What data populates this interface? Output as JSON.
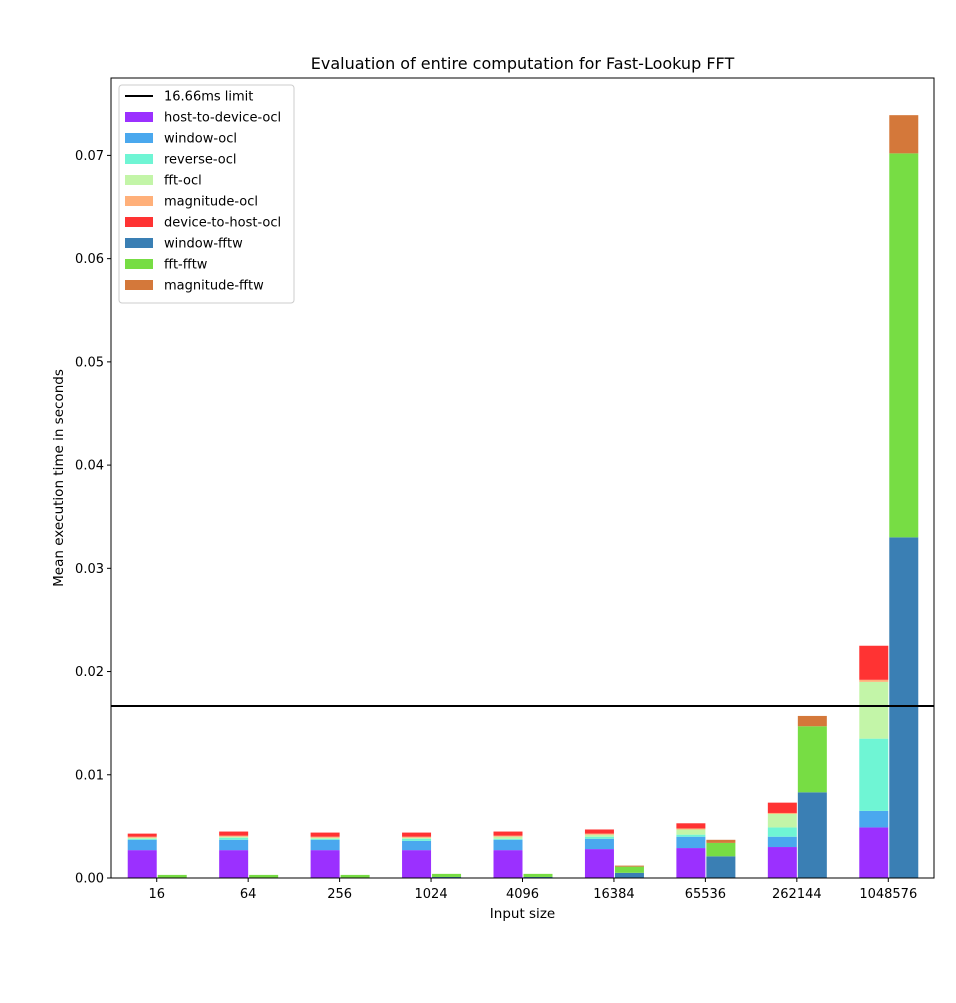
{
  "chart_data": {
    "type": "bar",
    "stacked": true,
    "grouped": true,
    "title": "Evaluation of entire computation for Fast-Lookup FFT",
    "xlabel": "Input size",
    "ylabel": "Mean execution time in seconds",
    "categories": [
      "16",
      "64",
      "256",
      "1024",
      "4096",
      "16384",
      "65536",
      "262144",
      "1048576"
    ],
    "ylim": [
      0,
      0.0775
    ],
    "yticks": [
      0.0,
      0.01,
      0.02,
      0.03,
      0.04,
      0.05,
      0.06,
      0.07
    ],
    "ytick_labels": [
      "0.00",
      "0.01",
      "0.02",
      "0.03",
      "0.04",
      "0.05",
      "0.06",
      "0.07"
    ],
    "grid": false,
    "legend_position": "top-left",
    "reference_line": {
      "name": "16.66ms limit",
      "value": 0.01666,
      "color": "#000000"
    },
    "groups": [
      {
        "name": "ocl",
        "position": "left",
        "series": [
          {
            "name": "host-to-device-ocl",
            "color": "#9b30ff",
            "values": [
              0.0027,
              0.0027,
              0.0027,
              0.0027,
              0.0027,
              0.0028,
              0.0029,
              0.003,
              0.0049
            ]
          },
          {
            "name": "window-ocl",
            "color": "#4aa8ee",
            "values": [
              0.001,
              0.001,
              0.001,
              0.0009,
              0.001,
              0.001,
              0.0011,
              0.001,
              0.0016
            ]
          },
          {
            "name": "reverse-ocl",
            "color": "#6ff5d4",
            "values": [
              0.0001,
              0.0002,
              0.0001,
              0.0002,
              0.0001,
              0.0002,
              0.0002,
              0.0009,
              0.007
            ]
          },
          {
            "name": "fft-ocl",
            "color": "#c3f5a8",
            "values": [
              0.0001,
              0.0001,
              0.0001,
              0.0001,
              0.0002,
              0.0002,
              0.0005,
              0.0013,
              0.0055
            ]
          },
          {
            "name": "magnitude-ocl",
            "color": "#ffb07a",
            "values": [
              0.0001,
              0.0001,
              0.0001,
              0.0001,
              0.0001,
              0.0001,
              0.0001,
              0.0001,
              0.0002
            ]
          },
          {
            "name": "device-to-host-ocl",
            "color": "#ff3333",
            "values": [
              0.0003,
              0.0004,
              0.0004,
              0.0004,
              0.0004,
              0.0004,
              0.0005,
              0.001,
              0.0033
            ]
          }
        ]
      },
      {
        "name": "fftw",
        "position": "right",
        "series": [
          {
            "name": "window-fftw",
            "color": "#3a7fb4",
            "values": [
              0.0,
              0.0,
              0.0,
              0.0001,
              0.0001,
              0.0005,
              0.0021,
              0.0083,
              0.033
            ]
          },
          {
            "name": "fft-fftw",
            "color": "#77dd44",
            "values": [
              0.0003,
              0.0003,
              0.0003,
              0.0003,
              0.0003,
              0.0006,
              0.0013,
              0.0064,
              0.0372
            ]
          },
          {
            "name": "magnitude-fftw",
            "color": "#d4783a",
            "values": [
              0.0,
              0.0,
              0.0,
              0.0,
              0.0,
              0.0001,
              0.0003,
              0.001,
              0.0037
            ]
          }
        ]
      }
    ]
  }
}
